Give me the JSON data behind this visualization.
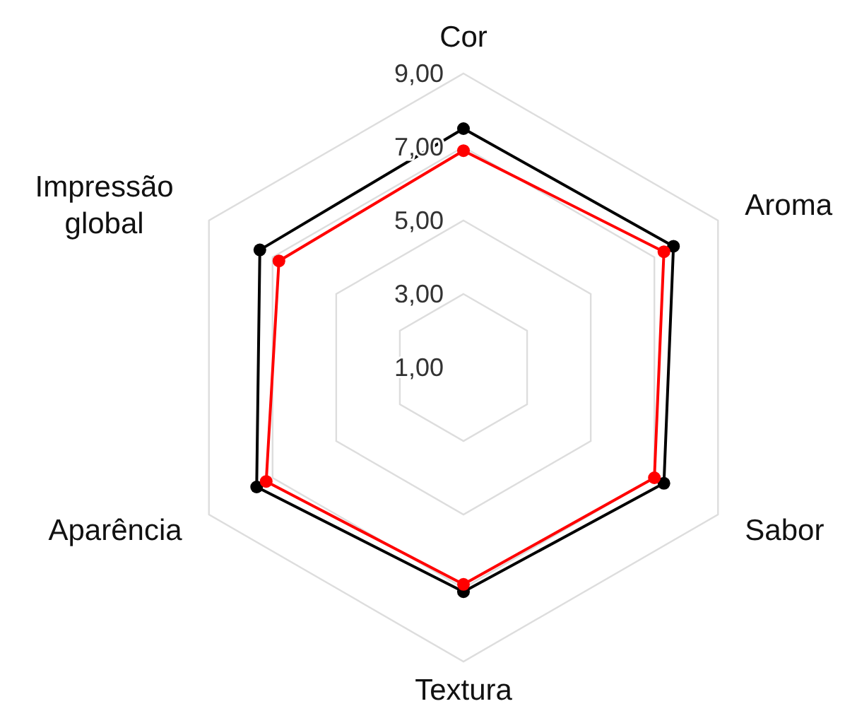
{
  "chart_data": {
    "type": "radar",
    "categories": [
      "Cor",
      "Aroma",
      "Sabor",
      "Textura",
      "Aparência",
      "Impressão global"
    ],
    "ylim": [
      1,
      9
    ],
    "yticks": [
      {
        "value": 1,
        "label": "1,00"
      },
      {
        "value": 3,
        "label": "3,00"
      },
      {
        "value": 5,
        "label": "5,00"
      },
      {
        "value": 7,
        "label": "7,00"
      },
      {
        "value": 9,
        "label": "9,00"
      }
    ],
    "grid": true,
    "marker": "circle",
    "series": [
      {
        "color": "#000000",
        "values": [
          7.5,
          7.6,
          7.3,
          7.1,
          7.5,
          7.4
        ]
      },
      {
        "color": "#ff0000",
        "values": [
          6.9,
          7.3,
          7.0,
          6.9,
          7.2,
          6.8
        ]
      }
    ]
  }
}
